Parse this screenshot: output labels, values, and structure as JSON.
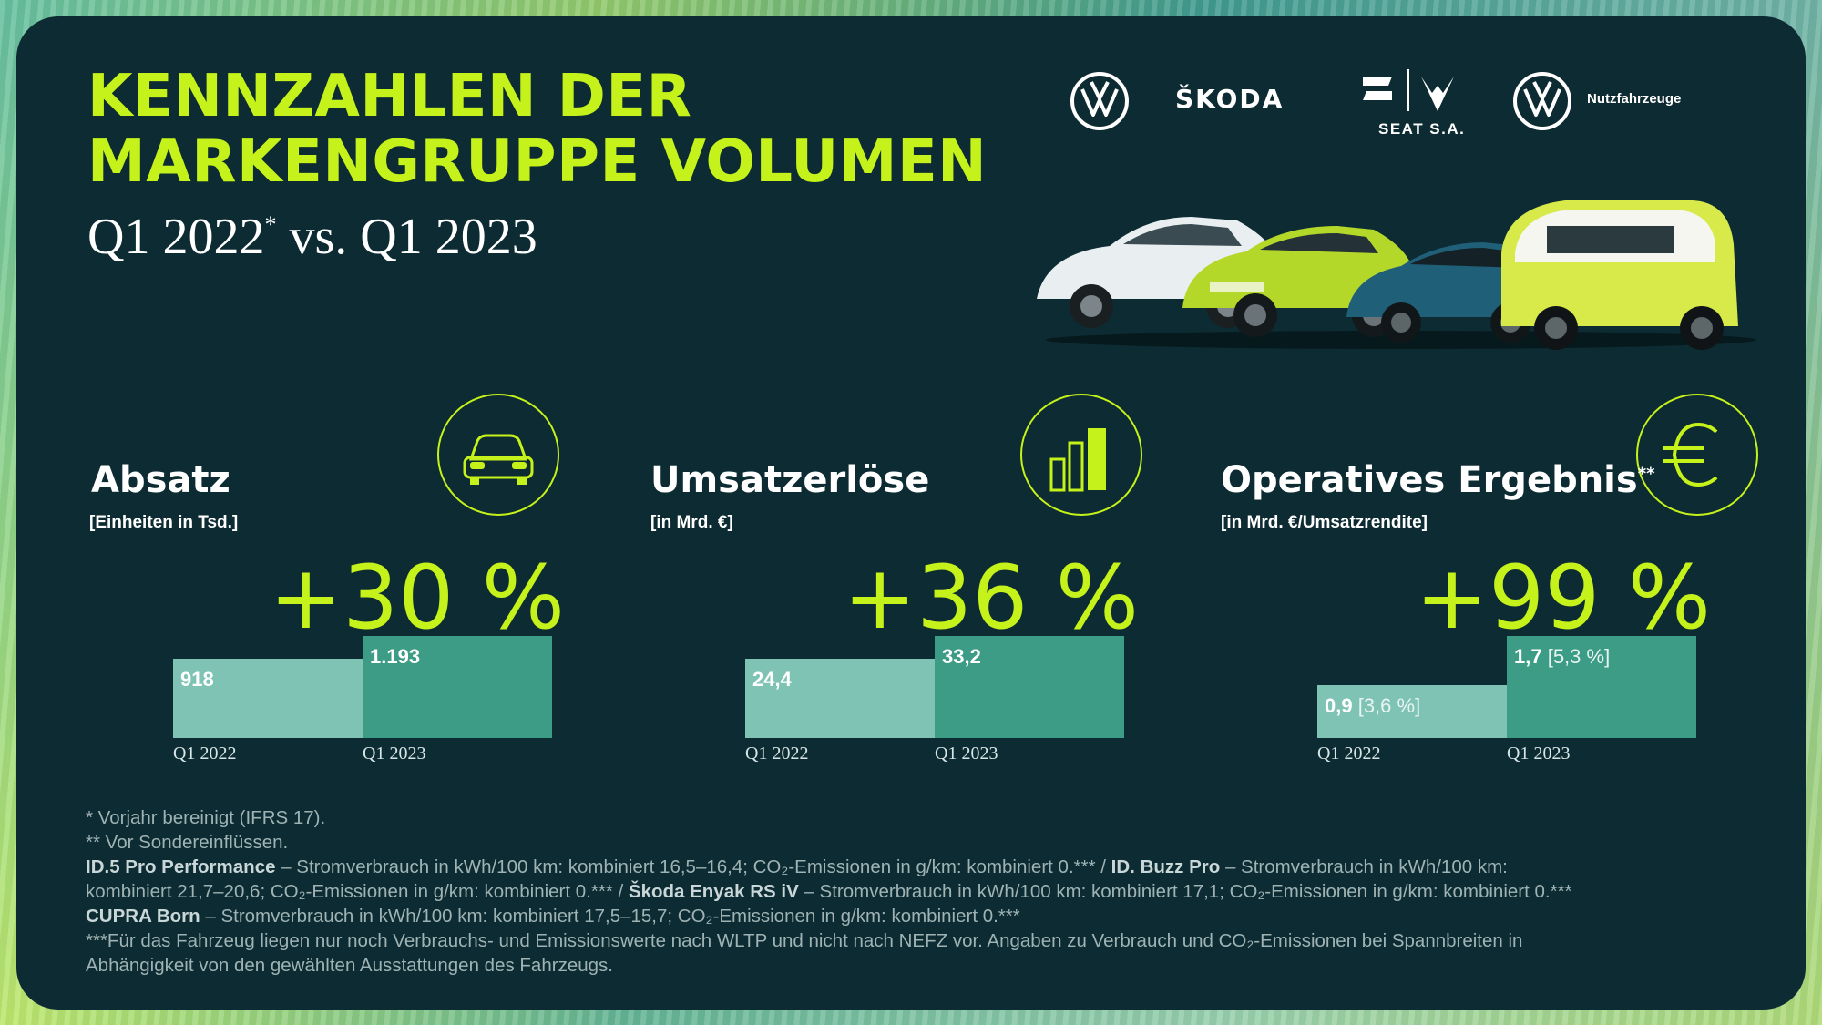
{
  "header": {
    "title_line1": "KENNZAHLEN DER",
    "title_line2": "MARKENGRUPPE VOLUMEN",
    "subtitle_pre": "Q1 2022",
    "subtitle_sup": "*",
    "subtitle_post": " vs. Q1 2023"
  },
  "brands": {
    "skoda": "ŠKODA",
    "seat": "SEAT S.A.",
    "vw_nfz": "Nutzfahrzeuge"
  },
  "colors": {
    "accent": "#c5f21a",
    "panel": "#0d2b32",
    "bar_light": "#7fc3b4",
    "bar_dark": "#3d9c85"
  },
  "kpis": [
    {
      "title": "Absatz",
      "title_sup": "",
      "unit": "[Einheiten in Tsd.]",
      "change": "+30 %",
      "icon": "car-front-icon",
      "bars": [
        {
          "label": "918",
          "sub": "",
          "category": "Q1 2022"
        },
        {
          "label": "1.193",
          "sub": "",
          "category": "Q1 2023"
        }
      ]
    },
    {
      "title": "Umsatzerlöse",
      "title_sup": "",
      "unit": "[in Mrd. €]",
      "change": "+36 %",
      "icon": "bar-chart-icon",
      "bars": [
        {
          "label": "24,4",
          "sub": "",
          "category": "Q1 2022"
        },
        {
          "label": "33,2",
          "sub": "",
          "category": "Q1 2023"
        }
      ]
    },
    {
      "title": "Operatives Ergebnis",
      "title_sup": "**",
      "unit": "[in Mrd. €/Umsatzrendite]",
      "change": "+99 %",
      "icon": "euro-icon",
      "bars": [
        {
          "label": "0,9",
          "sub": " [3,6 %]",
          "category": "Q1 2022"
        },
        {
          "label": "1,7",
          "sub": " [5,3 %]",
          "category": "Q1 2023"
        }
      ]
    }
  ],
  "chart_data": [
    {
      "type": "bar",
      "title": "Absatz",
      "ylabel": "[Einheiten in Tsd.]",
      "categories": [
        "Q1 2022",
        "Q1 2023"
      ],
      "values": [
        918,
        1193
      ]
    },
    {
      "type": "bar",
      "title": "Umsatzerlöse",
      "ylabel": "[in Mrd. €]",
      "categories": [
        "Q1 2022",
        "Q1 2023"
      ],
      "values": [
        24.4,
        33.2
      ]
    },
    {
      "type": "bar",
      "title": "Operatives Ergebnis",
      "ylabel": "[in Mrd. €/Umsatzrendite]",
      "categories": [
        "Q1 2022",
        "Q1 2023"
      ],
      "values": [
        0.9,
        1.7
      ],
      "margin_pct": [
        3.6,
        5.3
      ]
    }
  ],
  "footnotes": {
    "l1": "* Vorjahr bereinigt (IFRS 17).",
    "l2": "** Vor Sondereinflüssen.",
    "l3a": "ID.5 Pro Performance",
    "l3b": " – Stromverbrauch in kWh/100 km: kombiniert 16,5–16,4; CO₂-Emissionen in g/km: kombiniert 0.*** / ",
    "l3c": "ID. Buzz Pro",
    "l3d": " – Stromverbrauch in kWh/100 km:",
    "l4a": "kombiniert 21,7–20,6; CO₂-Emissionen in g/km: kombiniert 0.*** / ",
    "l4b": "Škoda Enyak RS iV",
    "l4c": " – Stromverbrauch in kWh/100 km: kombiniert 17,1; CO₂-Emissionen in g/km: kombiniert 0.***",
    "l5a": "CUPRA Born",
    "l5b": " – Stromverbrauch in kWh/100 km: kombiniert 17,5–15,7; CO₂-Emissionen in g/km: kombiniert 0.***",
    "l6": "***Für das Fahrzeug liegen nur noch Verbrauchs- und Emissionswerte nach WLTP und nicht nach NEFZ vor. Angaben zu Verbrauch und CO₂-Emissionen bei Spannbreiten in",
    "l7": "Abhängigkeit von den gewählten Ausstattungen des Fahrzeugs."
  }
}
